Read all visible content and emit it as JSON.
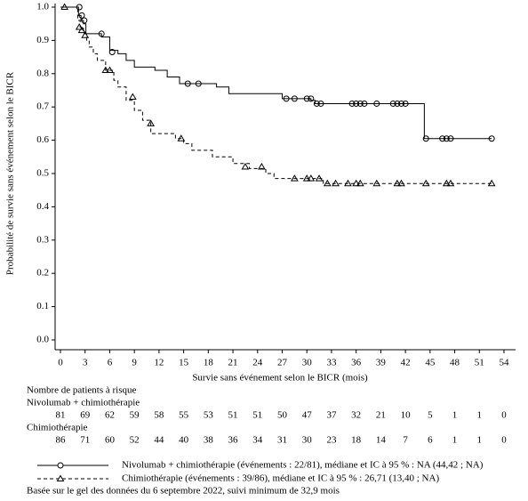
{
  "chart_data": {
    "type": "step",
    "ylabel": "Probabilité de survie sans événement selon le BICR",
    "xlabel": "Survie sans événement selon le BICR (mois)",
    "xlim": [
      0,
      54
    ],
    "ylim": [
      0,
      1
    ],
    "xticks": [
      0,
      3,
      6,
      9,
      12,
      15,
      18,
      21,
      24,
      27,
      30,
      33,
      36,
      39,
      42,
      45,
      48,
      51,
      54
    ],
    "yticks": [
      {
        "value": 0,
        "label": "0.0"
      },
      0.1,
      0.2,
      0.3,
      0.4,
      0.5,
      0.6,
      0.7,
      0.8,
      0.9,
      {
        "value": 1,
        "label": "1.0"
      }
    ],
    "series": [
      {
        "name": "Nivolumab + chimiothérapie",
        "color": "#000000",
        "dashed": false,
        "marker": "circle",
        "legend_label": "Nivolumab + chimiothérapie (événements : 22/81), médiane et IC à 95 % : NA (44,42 ; NA)",
        "x": [
          0,
          2.2,
          2.5,
          2.8,
          3.1,
          5,
          6,
          7,
          8,
          9,
          11.5,
          13,
          14.5,
          19,
          20.5,
          27,
          30.5,
          31,
          44.3,
          52.5
        ],
        "values": [
          1,
          0.975,
          0.96,
          0.95,
          0.92,
          0.91,
          0.87,
          0.86,
          0.84,
          0.82,
          0.81,
          0.79,
          0.77,
          0.76,
          0.74,
          0.725,
          0.72,
          0.71,
          0.605,
          0.605
        ],
        "censored": {
          "x": [
            2.3,
            2.6,
            2.9,
            5,
            6.3,
            15.5,
            16.8,
            27.5,
            28.5,
            30,
            30.5,
            31.2,
            31.7,
            35.5,
            36,
            36.5,
            37,
            38.5,
            40.5,
            41,
            41.5,
            42,
            44.5,
            46.5,
            47,
            47.5,
            52.5
          ],
          "values": [
            1,
            0.975,
            0.96,
            0.92,
            0.865,
            0.77,
            0.77,
            0.725,
            0.725,
            0.725,
            0.725,
            0.71,
            0.71,
            0.71,
            0.71,
            0.71,
            0.71,
            0.71,
            0.71,
            0.71,
            0.71,
            0.71,
            0.605,
            0.605,
            0.605,
            0.605,
            0.605
          ]
        }
      },
      {
        "name": "Chimiothérapie",
        "color": "#000000",
        "dashed": true,
        "marker": "triangle",
        "legend_label": "Chimiothérapie (événements : 39/86), médiane et IC à 95 % : 26,71 (13,40 ; NA)",
        "x": [
          0,
          2.1,
          2.4,
          2.8,
          3.2,
          3.5,
          4,
          4.5,
          5.5,
          6.5,
          7,
          8,
          9,
          10,
          11,
          14,
          15,
          16,
          18.5,
          21,
          23,
          25,
          26,
          32,
          52.5
        ],
        "values": [
          1,
          0.96,
          0.94,
          0.92,
          0.9,
          0.88,
          0.86,
          0.84,
          0.81,
          0.78,
          0.76,
          0.72,
          0.69,
          0.66,
          0.62,
          0.605,
          0.59,
          0.57,
          0.55,
          0.53,
          0.515,
          0.5,
          0.485,
          0.47,
          0.47
        ],
        "censored": {
          "x": [
            0.5,
            2.3,
            2.6,
            3,
            5.5,
            6,
            8.8,
            11,
            14.7,
            22.5,
            24.5,
            28.5,
            30,
            30.5,
            31.5,
            32.5,
            33.5,
            35,
            36,
            36.5,
            38.5,
            41,
            41.5,
            44.5,
            47,
            47.5,
            52.5
          ],
          "values": [
            1,
            0.94,
            0.93,
            0.915,
            0.81,
            0.81,
            0.73,
            0.65,
            0.605,
            0.52,
            0.52,
            0.485,
            0.485,
            0.485,
            0.485,
            0.47,
            0.47,
            0.47,
            0.47,
            0.47,
            0.47,
            0.47,
            0.47,
            0.47,
            0.47,
            0.47,
            0.47
          ]
        }
      }
    ],
    "risk_table": {
      "title": "Nombre de patients à risque",
      "rows": [
        [
          81,
          69,
          62,
          59,
          58,
          55,
          53,
          51,
          51,
          50,
          47,
          37,
          32,
          21,
          10,
          5,
          1,
          1,
          0
        ],
        [
          86,
          71,
          60,
          52,
          44,
          40,
          38,
          36,
          34,
          31,
          30,
          23,
          18,
          14,
          7,
          6,
          1,
          1,
          0
        ]
      ]
    },
    "footnote": "Basée sur le gel des données du 6 septembre 2022, suivi minimum de 32,9 mois"
  }
}
